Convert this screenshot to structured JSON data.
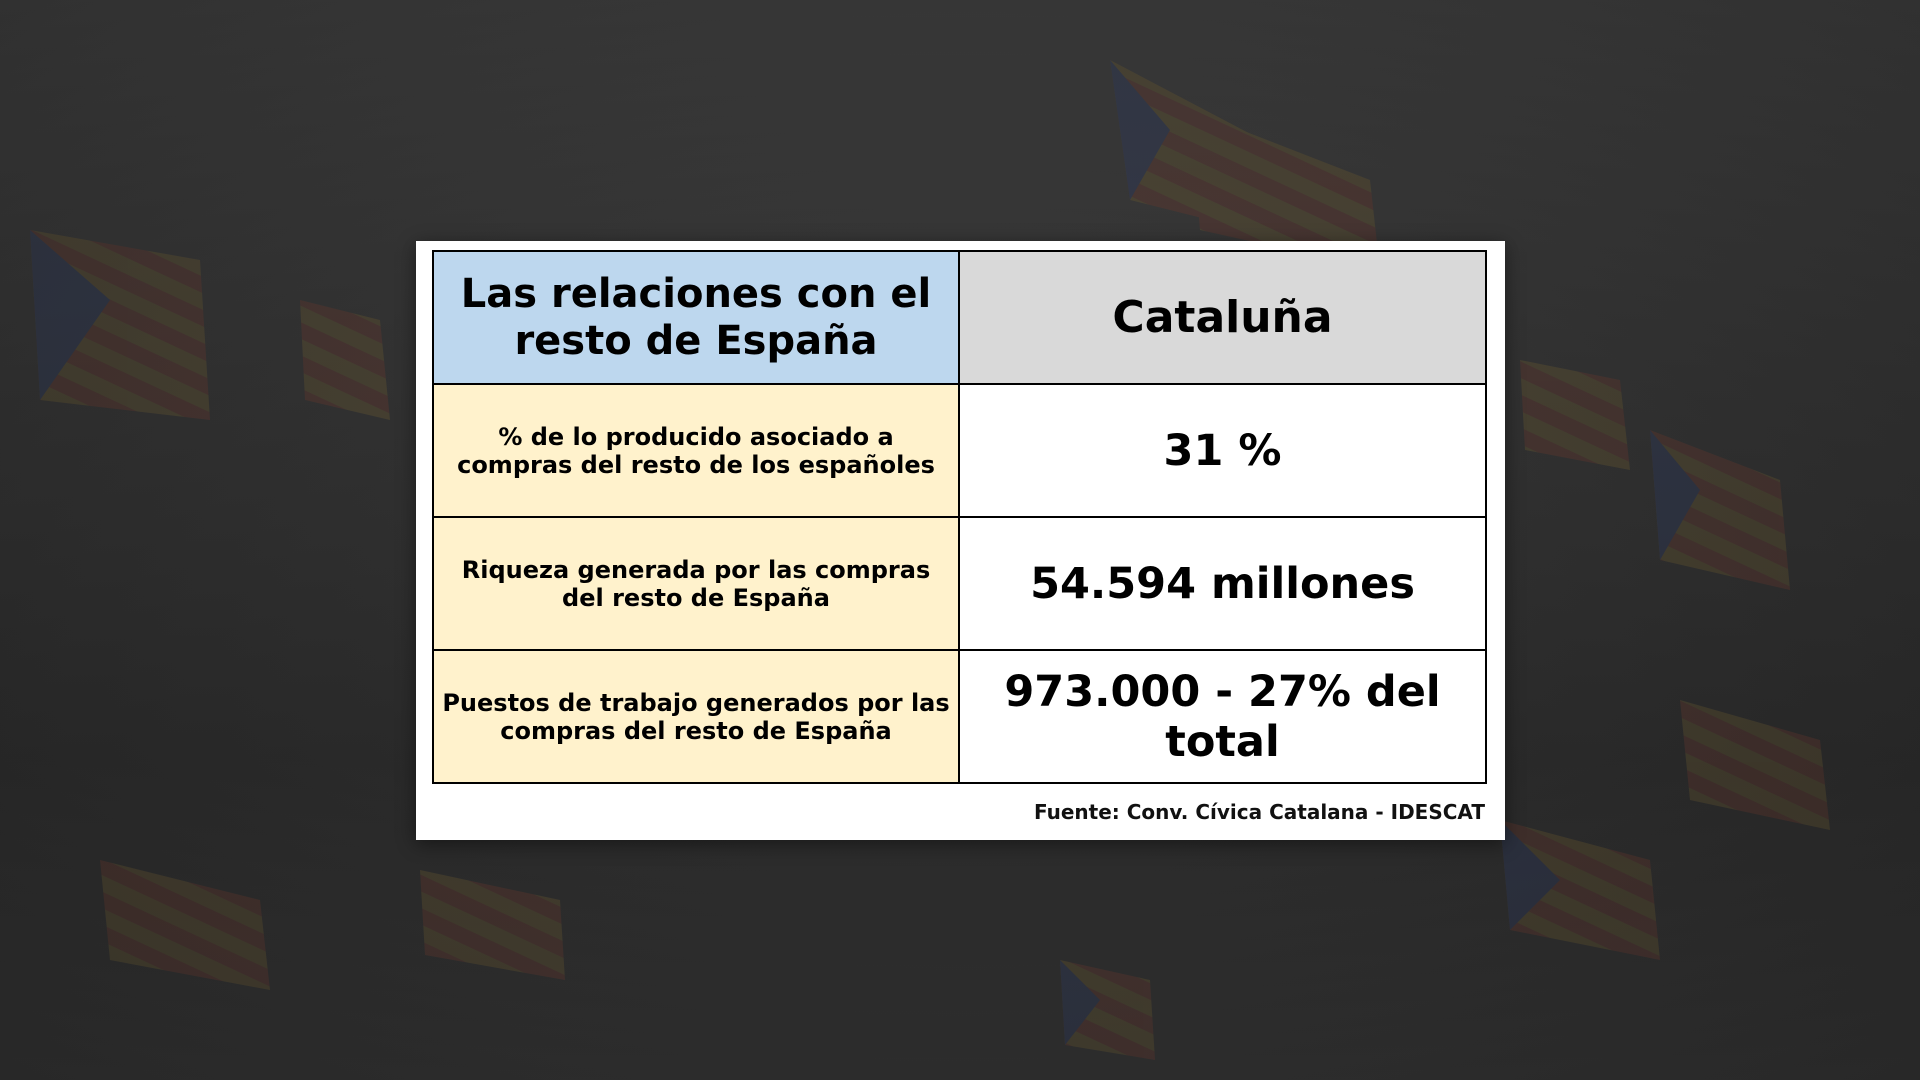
{
  "table": {
    "header": {
      "label": "Las relaciones con el resto de España",
      "column": "Cataluña"
    },
    "rows": [
      {
        "label": "% de lo producido asociado a compras del resto de los españoles",
        "value": "31 %"
      },
      {
        "label": "Riqueza generada  por las compras del resto de España",
        "value": "54.594 millones"
      },
      {
        "label": "Puestos de trabajo generados por las compras del resto de España",
        "value": "973.000 - 27% del total"
      }
    ]
  },
  "source": "Fuente: Conv. Cívica Catalana - IDESCAT",
  "colors": {
    "header_left": "#bdd7ee",
    "header_right": "#d9d9d9",
    "row_label": "#fff2cc",
    "value_cell": "#ffffff",
    "background": "#333333"
  }
}
